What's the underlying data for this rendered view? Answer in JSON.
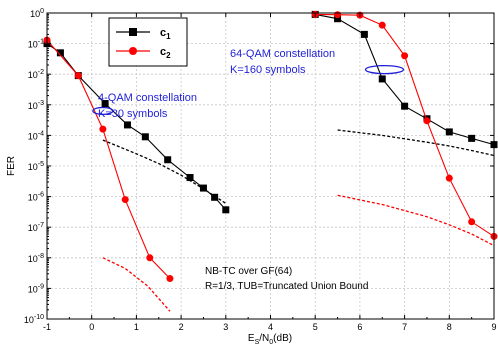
{
  "chart_data": {
    "type": "line",
    "x_axis": {
      "label_main": "E",
      "label_sub": "S",
      "label_mid": "/N",
      "label_sub2": "0",
      "label_end": "(dB)",
      "range": [
        -1,
        9
      ],
      "ticks": [
        -1,
        0,
        1,
        2,
        3,
        4,
        5,
        6,
        7,
        8,
        9
      ],
      "tick_labels": [
        "-1",
        "0",
        "1",
        "2",
        "3",
        "4",
        "5",
        "6",
        "7",
        "8",
        "9"
      ]
    },
    "y_axis": {
      "label": "FER",
      "scale": "log",
      "range_exp": [
        -10,
        0
      ],
      "tick_base": "10",
      "tick_exps": [
        "0",
        "-1",
        "-2",
        "-3",
        "-4",
        "-5",
        "-6",
        "-7",
        "-8",
        "-9",
        "-10"
      ]
    },
    "grid": true,
    "legend": {
      "position": "top-left",
      "entries": [
        {
          "main": "c",
          "sub": "1",
          "color": "#000000",
          "marker": "square"
        },
        {
          "main": "c",
          "sub": "2",
          "color": "#ff0000",
          "marker": "circle"
        }
      ]
    },
    "series": [
      {
        "legend": "c1",
        "group": "4-QAM",
        "color": "#000000",
        "marker": "square",
        "style": "solid",
        "x": [
          -1.0,
          -0.7,
          -0.3,
          0.3,
          0.8,
          1.2,
          1.7,
          2.2,
          2.5,
          2.75,
          3.0
        ],
        "y": [
          0.1,
          0.05,
          0.009,
          0.0011,
          0.00022,
          9e-05,
          1.6e-05,
          4.2e-06,
          1.9e-06,
          9.5e-07,
          3.7e-07
        ]
      },
      {
        "legend": "c2",
        "group": "4-QAM",
        "color": "#ff0000",
        "marker": "circle",
        "style": "solid",
        "x": [
          -1.0,
          -0.3,
          0.25,
          0.75,
          1.3,
          1.75
        ],
        "y": [
          0.13,
          0.009,
          0.00016,
          8e-07,
          1e-08,
          2.1e-09
        ]
      },
      {
        "legend": "c1",
        "group": "64-QAM",
        "color": "#000000",
        "marker": "square",
        "style": "solid",
        "x": [
          5.0,
          5.5,
          6.1,
          6.5,
          7.0,
          7.5,
          8.0,
          8.5,
          9.0
        ],
        "y": [
          0.9,
          0.65,
          0.2,
          0.007,
          0.0009,
          0.00035,
          0.00013,
          8e-05,
          5e-05
        ]
      },
      {
        "legend": "c2",
        "group": "64-QAM",
        "color": "#ff0000",
        "marker": "circle",
        "style": "solid",
        "x": [
          5.0,
          5.5,
          6.0,
          6.5,
          7.0,
          7.5,
          8.0,
          8.5,
          9.0
        ],
        "y": [
          0.9,
          0.88,
          0.85,
          0.4,
          0.04,
          0.0003,
          4e-06,
          1.5e-07,
          5e-08
        ]
      },
      {
        "legend": "TUB",
        "group": "4-QAM",
        "color": "#000000",
        "style": "dashed",
        "x": [
          0.25,
          1.0,
          1.5,
          2.0,
          2.5,
          3.0
        ],
        "y": [
          7e-05,
          2.5e-05,
          1.2e-05,
          5e-06,
          1.8e-06,
          6e-07
        ]
      },
      {
        "legend": "TUB",
        "group": "4-QAM",
        "color": "#ff0000",
        "style": "dashed",
        "x": [
          0.25,
          0.75,
          1.25,
          1.75
        ],
        "y": [
          1e-08,
          4.5e-09,
          1.2e-09,
          1.8e-10
        ]
      },
      {
        "legend": "TUB",
        "group": "64-QAM",
        "color": "#000000",
        "style": "dashed",
        "x": [
          5.5,
          6.5,
          7.5,
          8.0,
          8.5,
          9.0
        ],
        "y": [
          0.00015,
          0.0001,
          6e-05,
          4.5e-05,
          3.2e-05,
          2.2e-05
        ]
      },
      {
        "legend": "TUB",
        "group": "64-QAM",
        "color": "#ff0000",
        "style": "dashed",
        "x": [
          5.5,
          6.5,
          7.5,
          8.0,
          8.5,
          9.0
        ],
        "y": [
          1.1e-06,
          5.5e-07,
          2.2e-07,
          1.2e-07,
          6e-08,
          2.5e-08
        ]
      }
    ],
    "annotations": [
      {
        "name": "annotation-64qam-line1",
        "text": "64-QAM constellation",
        "color": "#1f1fd6"
      },
      {
        "name": "annotation-64qam-line2",
        "text": "K=160 symbols",
        "color": "#1f1fd6"
      },
      {
        "name": "annotation-4qam-line1",
        "text": "4-QAM constellation",
        "color": "#1f1fd6"
      },
      {
        "name": "annotation-4qam-line2",
        "text": "K=30 symbols",
        "color": "#1f1fd6"
      },
      {
        "name": "annotation-nbtc-line1",
        "text": "NB-TC over GF(64)",
        "color": "#000000"
      },
      {
        "name": "annotation-nbtc-line2",
        "text": "R=1/3, TUB=Truncated Union Bound",
        "color": "#000000"
      }
    ],
    "ellipses": [
      {
        "name": "ellipse-4qam",
        "cx": 0.25,
        "cy_exp": -3.2,
        "color": "#1f1fd6"
      },
      {
        "name": "ellipse-64qam",
        "cx": 6.55,
        "cy_exp": -1.85,
        "color": "#1f1fd6"
      }
    ]
  }
}
